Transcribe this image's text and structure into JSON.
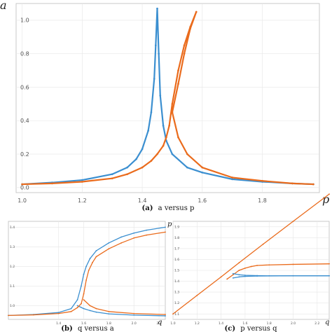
{
  "colors": {
    "blue": "#3b8fd0",
    "orange": "#ea6b1c",
    "grid": "#e6e6e6",
    "frame": "#bdbdbd"
  },
  "chart_data": [
    {
      "id": "a",
      "type": "scatter",
      "caption": {
        "label": "(a)",
        "text": "a versus p"
      },
      "xlabel": "p",
      "ylabel": "a",
      "xlim": [
        0.98,
        1.99
      ],
      "ylim": [
        -0.03,
        1.1
      ],
      "xticks": [
        "1.0",
        "1.2",
        "1.4",
        "1.6",
        "1.8"
      ],
      "yticks": [
        "0.0",
        "0.2",
        "0.4",
        "0.6",
        "0.8",
        "1.0"
      ],
      "grid": true,
      "series": [
        {
          "color_key": "blue",
          "x": [
            1.0,
            1.1,
            1.2,
            1.3,
            1.35,
            1.38,
            1.4,
            1.42,
            1.43,
            1.44,
            1.445,
            1.45,
            1.455,
            1.46,
            1.47,
            1.48,
            1.5,
            1.55,
            1.6,
            1.7,
            1.8,
            1.9,
            1.97
          ],
          "y": [
            0.02,
            0.03,
            0.045,
            0.08,
            0.12,
            0.17,
            0.23,
            0.34,
            0.45,
            0.65,
            0.85,
            1.07,
            0.8,
            0.55,
            0.37,
            0.28,
            0.2,
            0.12,
            0.09,
            0.05,
            0.035,
            0.025,
            0.02
          ]
        },
        {
          "color_key": "orange",
          "x": [
            1.0,
            1.1,
            1.2,
            1.3,
            1.35,
            1.4,
            1.43,
            1.45,
            1.47,
            1.48,
            1.49,
            1.5,
            1.52,
            1.54,
            1.56,
            1.58,
            1.56,
            1.54,
            1.52,
            1.5,
            1.52,
            1.55,
            1.6,
            1.7,
            1.8,
            1.9,
            1.97
          ],
          "y": [
            0.02,
            0.025,
            0.035,
            0.055,
            0.08,
            0.12,
            0.16,
            0.2,
            0.25,
            0.3,
            0.37,
            0.5,
            0.7,
            0.85,
            0.96,
            1.05,
            0.95,
            0.8,
            0.62,
            0.45,
            0.3,
            0.2,
            0.12,
            0.06,
            0.04,
            0.025,
            0.02
          ]
        }
      ]
    },
    {
      "id": "b",
      "type": "scatter",
      "caption": {
        "label": "(b)",
        "text": "q versus a"
      },
      "xlabel": "q",
      "ylabel": "",
      "xlim": [
        1.0,
        2.25
      ],
      "ylim": [
        0.93,
        1.43
      ],
      "xticks": [
        "1.4",
        "1.6",
        "1.8",
        "2.0",
        "2.2"
      ],
      "yticks": [
        "1.0",
        "1.1",
        "1.2",
        "1.3",
        "1.4"
      ],
      "grid": true,
      "series": [
        {
          "color_key": "blue",
          "x": [
            1.0,
            1.2,
            1.4,
            1.5,
            1.55,
            1.58,
            1.6,
            1.62,
            1.65,
            1.7,
            1.8,
            1.9,
            2.0,
            2.1,
            2.25
          ],
          "y": [
            0.95,
            0.955,
            0.965,
            0.985,
            1.03,
            1.1,
            1.16,
            1.2,
            1.24,
            1.28,
            1.32,
            1.35,
            1.37,
            1.385,
            1.4
          ]
        },
        {
          "color_key": "blue",
          "x": [
            1.55,
            1.6,
            1.65,
            1.7,
            1.8,
            2.0,
            2.25
          ],
          "y": [
            1.0,
            0.985,
            0.975,
            0.967,
            0.958,
            0.952,
            0.948
          ]
        },
        {
          "color_key": "orange",
          "x": [
            1.0,
            1.2,
            1.4,
            1.5,
            1.55,
            1.58,
            1.6,
            1.62,
            1.64,
            1.67,
            1.7,
            1.8,
            1.9,
            2.0,
            2.1,
            2.25
          ],
          "y": [
            0.95,
            0.953,
            0.96,
            0.97,
            0.99,
            1.01,
            1.06,
            1.13,
            1.18,
            1.22,
            1.25,
            1.29,
            1.32,
            1.345,
            1.36,
            1.375
          ]
        },
        {
          "color_key": "orange",
          "x": [
            1.6,
            1.65,
            1.7,
            1.8,
            2.0,
            2.25
          ],
          "y": [
            1.03,
            1.0,
            0.985,
            0.97,
            0.96,
            0.955
          ]
        }
      ]
    },
    {
      "id": "c",
      "type": "line",
      "caption": {
        "label": "(c)",
        "text": "p versus q"
      },
      "xlabel": "q",
      "ylabel": "p",
      "xlim": [
        1.0,
        2.3
      ],
      "ylim": [
        1.05,
        1.95
      ],
      "xticks": [
        "1.0",
        "1.2",
        "1.4",
        "1.6",
        "1.8",
        "2.0",
        "2.2"
      ],
      "yticks": [
        "1.1",
        "1.2",
        "1.3",
        "1.4",
        "1.5",
        "1.6",
        "1.7",
        "1.8",
        "1.9"
      ],
      "grid": true,
      "series": [
        {
          "color_key": "orange",
          "x": [
            1.0,
            1.2,
            1.4,
            1.55,
            1.75,
            2.0,
            2.3
          ],
          "y": [
            1.1,
            1.27,
            1.44,
            1.57,
            1.74,
            1.95,
            2.2
          ]
        },
        {
          "color_key": "orange",
          "x": [
            1.45,
            1.5,
            1.55,
            1.6,
            1.65,
            1.7,
            1.8,
            2.0,
            2.3
          ],
          "y": [
            1.42,
            1.46,
            1.5,
            1.52,
            1.535,
            1.545,
            1.55,
            1.555,
            1.56
          ]
        },
        {
          "color_key": "blue",
          "x": [
            1.5,
            1.55,
            1.6,
            1.7,
            1.8,
            2.0,
            2.3
          ],
          "y": [
            1.47,
            1.46,
            1.455,
            1.452,
            1.45,
            1.45,
            1.45
          ]
        },
        {
          "color_key": "blue",
          "x": [
            1.5,
            1.55,
            1.6,
            1.7,
            2.0,
            2.3
          ],
          "y": [
            1.43,
            1.44,
            1.445,
            1.448,
            1.45,
            1.45
          ]
        }
      ]
    }
  ]
}
